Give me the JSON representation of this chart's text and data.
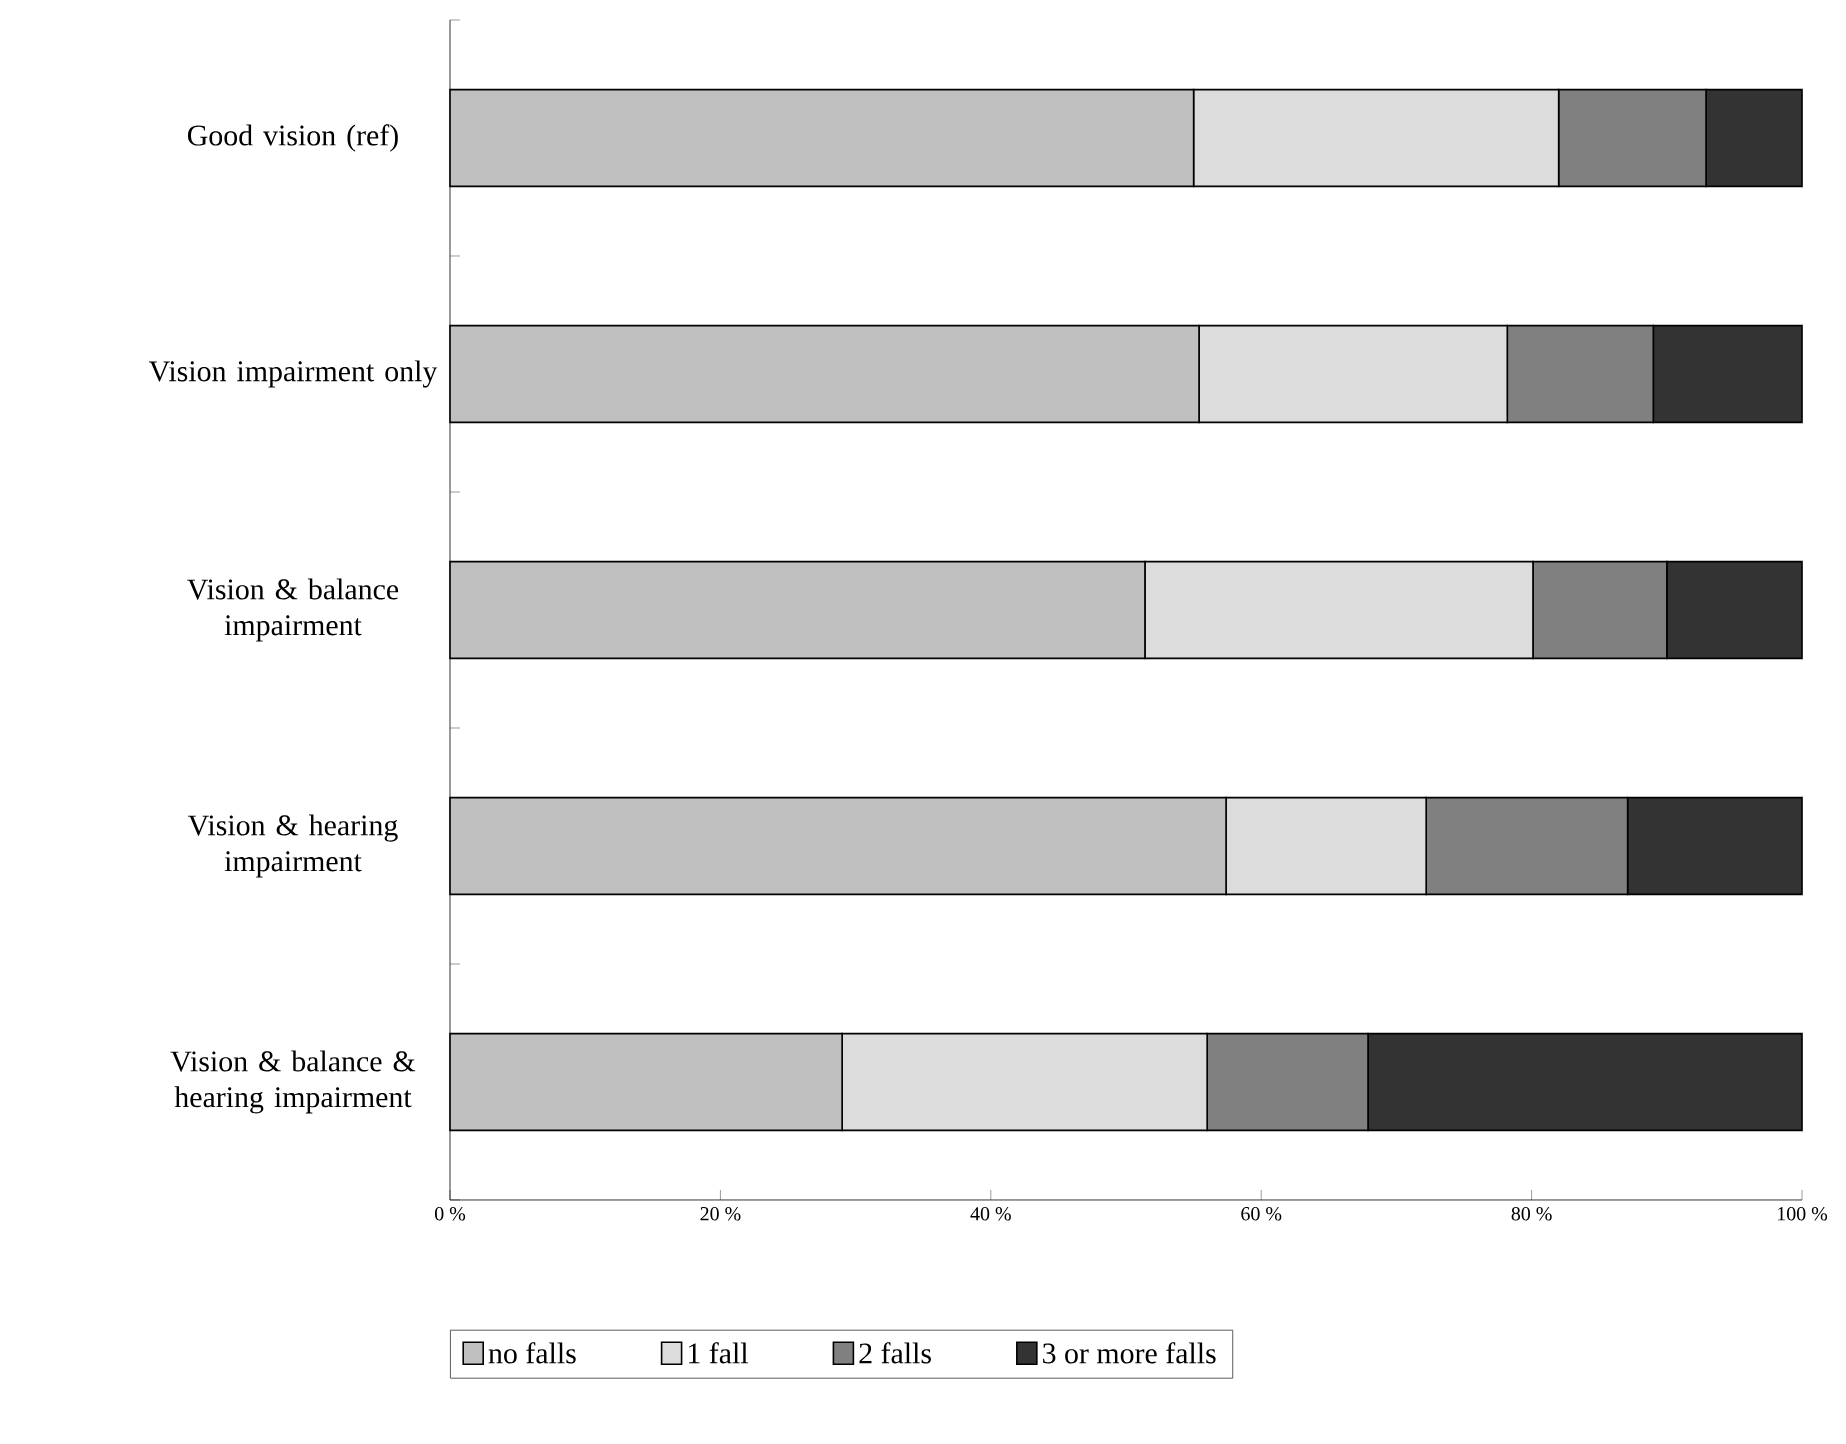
{
  "chart_data": {
    "type": "bar",
    "orientation": "horizontal",
    "stacked": true,
    "categories": [
      "Good vision (ref)",
      "Vision impairment only",
      "Vision & balance impairment",
      "Vision & hearing impairment",
      "Vision & balance & hearing impairment"
    ],
    "series": [
      {
        "name": "no falls",
        "color": "#c0c0c0",
        "values": [
          55.0,
          55.4,
          51.4,
          57.4,
          29.0
        ]
      },
      {
        "name": "1 fall",
        "color": "#dcdcdc",
        "values": [
          27.0,
          22.8,
          28.7,
          14.8,
          27.0
        ]
      },
      {
        "name": "2 falls",
        "color": "#808080",
        "values": [
          10.9,
          10.8,
          9.9,
          14.9,
          11.9
        ]
      },
      {
        "name": "3 or more falls",
        "color": "#333333",
        "values": [
          7.1,
          11.0,
          10.0,
          12.9,
          32.1
        ]
      }
    ],
    "xlim": [
      0,
      100
    ],
    "xticks": [
      {
        "value": 0,
        "label": "0 %"
      },
      {
        "value": 20,
        "label": "20 %"
      },
      {
        "value": 40,
        "label": "40 %"
      },
      {
        "value": 60,
        "label": "60 %"
      },
      {
        "value": 80,
        "label": "80 %"
      },
      {
        "value": 100,
        "label": "100 %"
      }
    ],
    "grid": false,
    "legend": "bottom"
  }
}
